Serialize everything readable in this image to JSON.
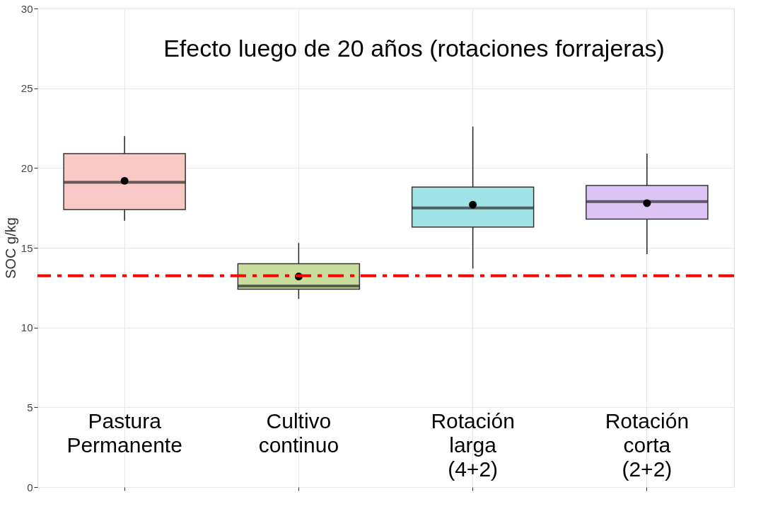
{
  "chart_data": {
    "type": "box",
    "title": "Efecto luego de 20 años (rotaciones forrajeras)",
    "ylabel": "SOC g/kg",
    "categories": [
      "Pastura\nPermanente",
      "Cultivo\ncontinuo",
      "Rotación\nlarga\n(4+2)",
      "Rotación\ncorta\n(2+2)"
    ],
    "boxes": [
      {
        "low": 16.7,
        "q1": 17.4,
        "median": 19.1,
        "q3": 20.9,
        "high": 22.0,
        "mean": 19.2
      },
      {
        "low": 11.8,
        "q1": 12.4,
        "median": 12.6,
        "q3": 14.0,
        "high": 15.3,
        "mean": 13.2
      },
      {
        "low": 13.7,
        "q1": 16.3,
        "median": 17.5,
        "q3": 18.8,
        "high": 22.6,
        "mean": 17.7
      },
      {
        "low": 14.6,
        "q1": 16.8,
        "median": 17.9,
        "q3": 18.9,
        "high": 20.9,
        "mean": 17.8
      }
    ],
    "colors": [
      "#f8c9c5",
      "#c8dc9b",
      "#9fe3e6",
      "#dcc5f5"
    ],
    "ylim": [
      0,
      30
    ],
    "yticks": [
      0,
      5,
      10,
      15,
      20,
      25,
      30
    ],
    "ref_lines": [
      {
        "axis": "y",
        "value": 13.25,
        "color": "#ff0000",
        "line_style": "dashed"
      }
    ],
    "grid": true,
    "marker": "circle"
  }
}
